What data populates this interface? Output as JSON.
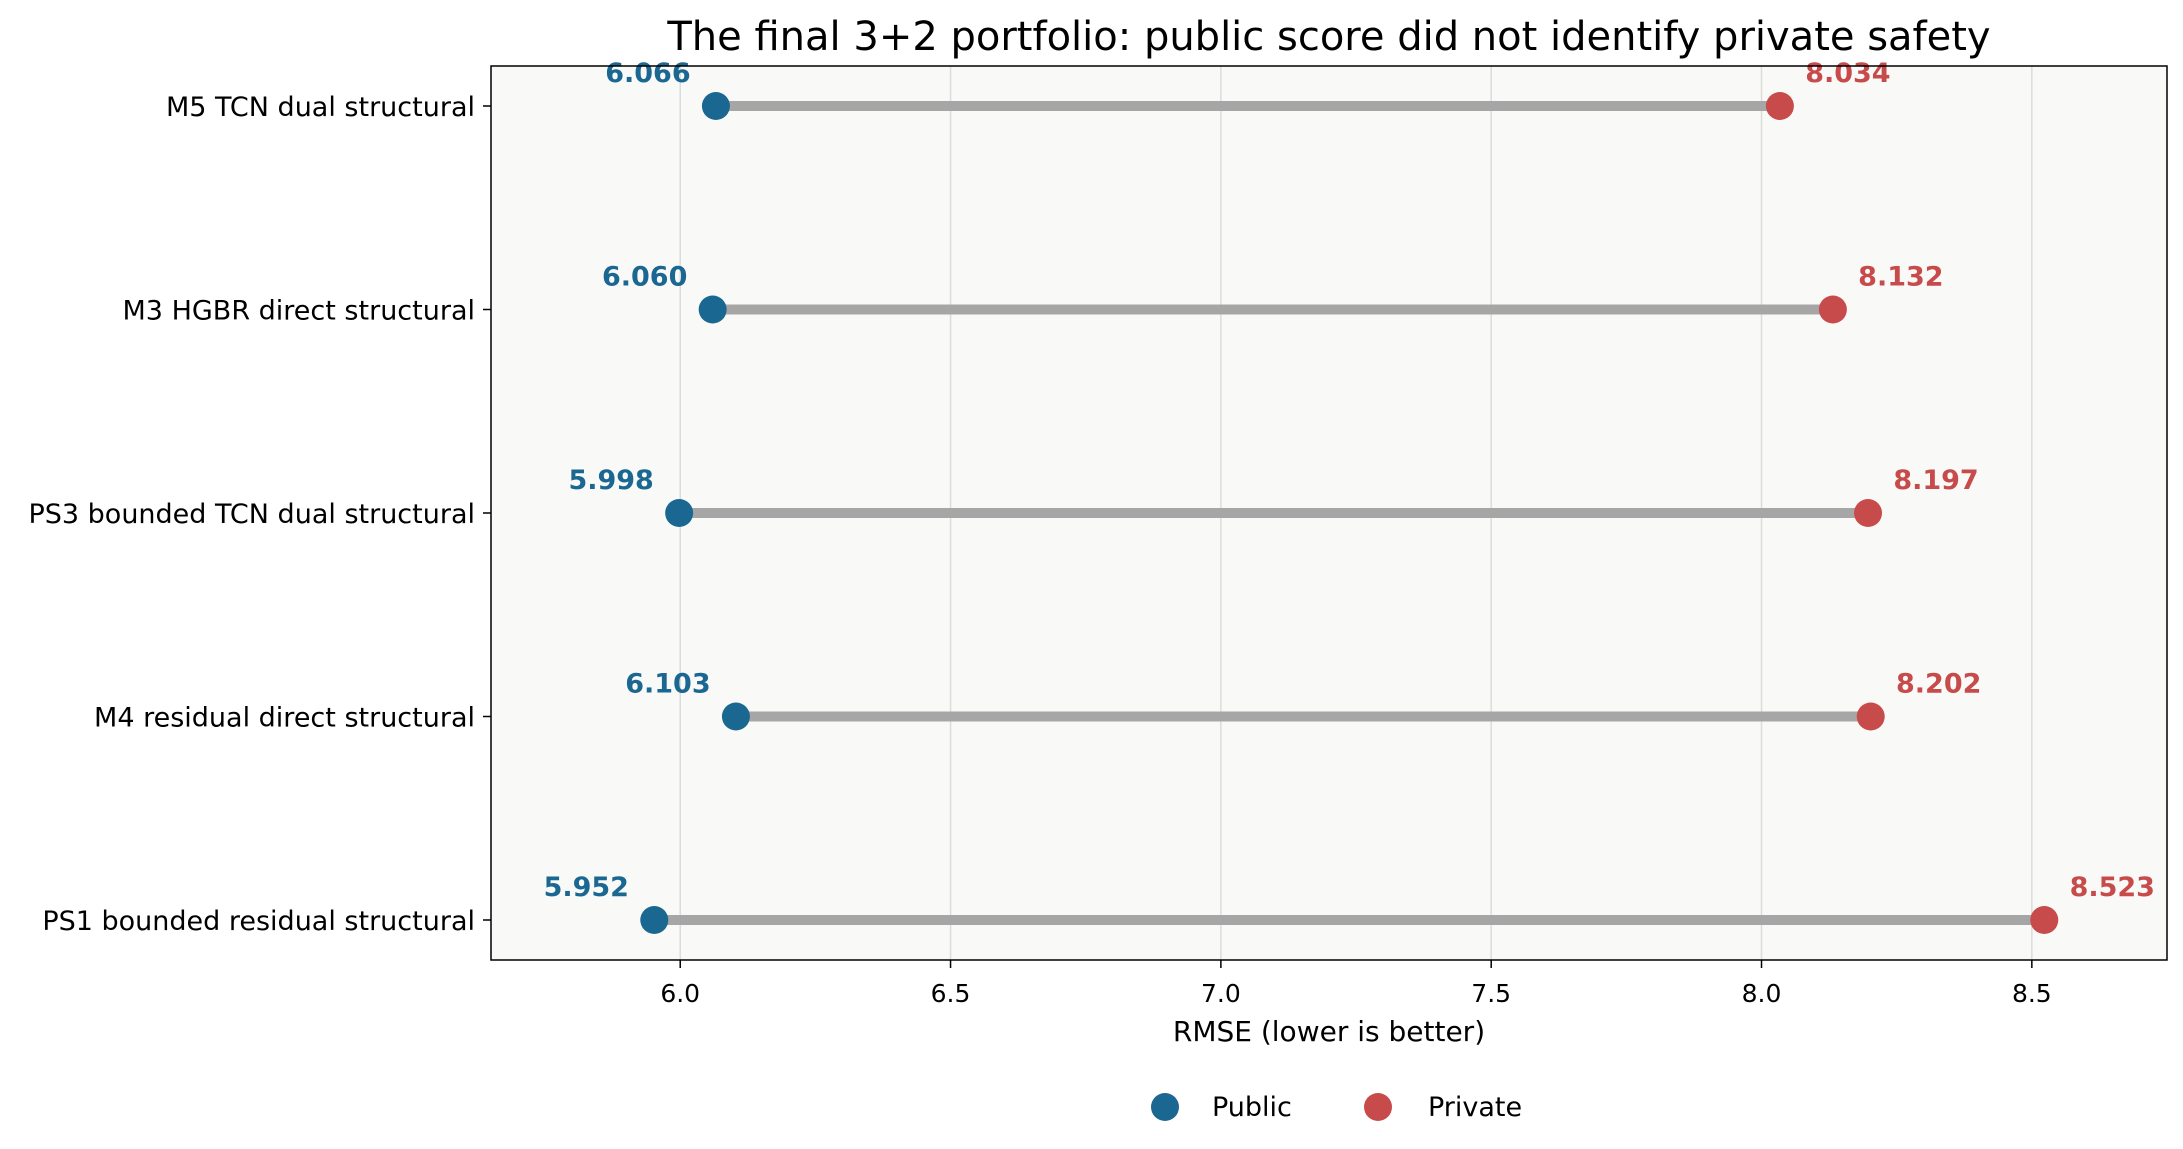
{
  "chart_data": {
    "type": "dumbbell",
    "title": "The final 3+2 portfolio: public score did not identify private safety",
    "xlabel": "RMSE (lower is better)",
    "ylabel": "",
    "xlim": [
      5.65,
      8.75
    ],
    "x_ticks": [
      "6.0",
      "6.5",
      "7.0",
      "7.5",
      "8.0",
      "8.5"
    ],
    "grid": "vertical",
    "legend_position": "bottom-center",
    "categories": [
      "M5 TCN dual structural",
      "M3 HGBR direct structural",
      "PS3 bounded TCN dual structural",
      "M4 residual direct structural",
      "PS1 bounded residual structural"
    ],
    "series": [
      {
        "name": "Public",
        "color": "#1a6891",
        "values": [
          6.066,
          6.06,
          5.998,
          6.103,
          5.952
        ],
        "labels": [
          "6.066",
          "6.060",
          "5.998",
          "6.103",
          "5.952"
        ]
      },
      {
        "name": "Private",
        "color": "#c84b4b",
        "values": [
          8.034,
          8.132,
          8.197,
          8.202,
          8.523
        ],
        "labels": [
          "8.034",
          "8.132",
          "8.197",
          "8.202",
          "8.523"
        ]
      }
    ],
    "connector_color": "#a6a6a6",
    "plot_background": "#f9f9f8"
  }
}
